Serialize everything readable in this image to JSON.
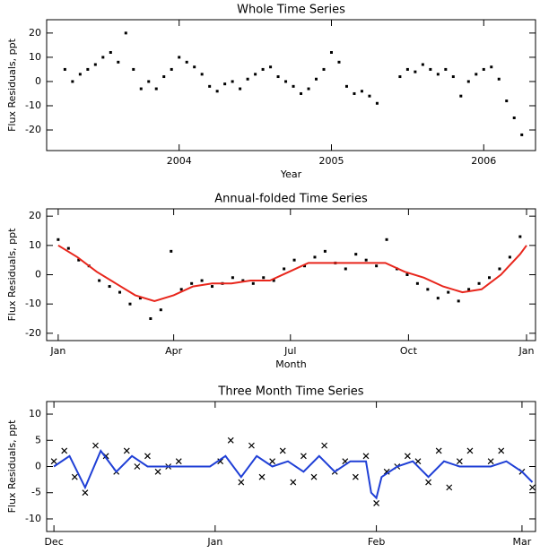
{
  "chart_data": [
    {
      "type": "scatter",
      "title": "Whole Time Series",
      "x_label": "Year",
      "y_label": "Flux Residuals, ppt",
      "xlim": [
        2003.13,
        2006.34
      ],
      "ylim": [
        -28.5,
        25.5
      ],
      "xticks": [
        2004,
        2005,
        2006
      ],
      "yticks": [
        -20,
        -10,
        0,
        10,
        20
      ],
      "series": [
        {
          "type": "scatter",
          "marker": "dot",
          "color": "#000000",
          "x": [
            2003.25,
            2003.3,
            2003.35,
            2003.4,
            2003.45,
            2003.5,
            2003.55,
            2003.6,
            2003.65,
            2003.7,
            2003.75,
            2003.8,
            2003.85,
            2003.9,
            2003.95,
            2004.0,
            2004.05,
            2004.1,
            2004.15,
            2004.2,
            2004.25,
            2004.3,
            2004.35,
            2004.4,
            2004.45,
            2004.5,
            2004.55,
            2004.6,
            2004.65,
            2004.7,
            2004.75,
            2004.8,
            2004.85,
            2004.9,
            2004.95,
            2005.0,
            2005.05,
            2005.1,
            2005.15,
            2005.2,
            2005.25,
            2005.3,
            2005.45,
            2005.5,
            2005.55,
            2005.6,
            2005.65,
            2005.7,
            2005.75,
            2005.8,
            2005.85,
            2005.9,
            2005.95,
            2006.0,
            2006.05,
            2006.1,
            2006.15,
            2006.2,
            2006.25
          ],
          "values": [
            5,
            0,
            3,
            5,
            7,
            10,
            12,
            8,
            20,
            5,
            -3,
            0,
            -3,
            2,
            5,
            10,
            8,
            6,
            3,
            -2,
            -4,
            -1,
            0,
            -3,
            1,
            3,
            5,
            6,
            2,
            0,
            -2,
            -5,
            -3,
            1,
            5,
            12,
            8,
            -2,
            -5,
            -4,
            -6,
            -9,
            2,
            5,
            4,
            7,
            5,
            3,
            5,
            2,
            -6,
            0,
            3,
            5,
            6,
            1,
            -8,
            -15,
            -22
          ]
        }
      ]
    },
    {
      "type": "scatter",
      "title": "Annual-folded Time Series",
      "x_label": "Month",
      "y_label": "Flux Residuals, ppt",
      "xlim": [
        -9,
        372
      ],
      "ylim": [
        -22.5,
        22.5
      ],
      "xticks": [
        {
          "value": 0,
          "label": "Jan"
        },
        {
          "value": 90,
          "label": "Apr"
        },
        {
          "value": 181,
          "label": "Jul"
        },
        {
          "value": 273,
          "label": "Oct"
        },
        {
          "value": 365,
          "label": "Jan"
        }
      ],
      "yticks": [
        -20,
        -10,
        0,
        10,
        20
      ],
      "series": [
        {
          "type": "scatter",
          "marker": "dot",
          "color": "#000000",
          "x": [
            0,
            8,
            16,
            24,
            32,
            40,
            48,
            56,
            64,
            72,
            80,
            88,
            96,
            104,
            112,
            120,
            128,
            136,
            144,
            152,
            160,
            168,
            176,
            184,
            192,
            200,
            208,
            216,
            224,
            232,
            240,
            248,
            256,
            264,
            272,
            280,
            288,
            296,
            304,
            312,
            320,
            328,
            336,
            344,
            352,
            360
          ],
          "values": [
            12,
            9,
            5,
            3,
            -2,
            -4,
            -6,
            -10,
            -8,
            -15,
            -12,
            8,
            -5,
            -3,
            -2,
            -4,
            -3,
            -1,
            -2,
            -3,
            -1,
            -2,
            2,
            5,
            3,
            6,
            8,
            4,
            2,
            7,
            5,
            3,
            12,
            2,
            0,
            -3,
            -5,
            -8,
            -6,
            -9,
            -5,
            -3,
            -1,
            2,
            6,
            13
          ]
        },
        {
          "type": "line",
          "color": "#e8261c",
          "x": [
            0,
            15,
            30,
            45,
            60,
            75,
            90,
            105,
            120,
            135,
            150,
            165,
            180,
            195,
            210,
            225,
            240,
            255,
            270,
            285,
            300,
            315,
            330,
            345,
            360,
            365
          ],
          "values": [
            10,
            6,
            1,
            -3,
            -7,
            -9,
            -7,
            -4,
            -3,
            -3,
            -2,
            -2,
            1,
            4,
            4,
            4,
            4,
            4,
            1,
            -1,
            -4,
            -6,
            -5,
            0,
            7,
            10
          ]
        }
      ]
    },
    {
      "type": "scatter",
      "title": "Three Month Time Series",
      "y_label": "Flux Residuals, ppt",
      "xlim": [
        -1.4,
        92.6
      ],
      "ylim": [
        -12.4,
        12.4
      ],
      "xticks": [
        {
          "value": 0,
          "label": "Dec"
        },
        {
          "value": 31,
          "label": "Jan"
        },
        {
          "value": 62,
          "label": "Feb"
        },
        {
          "value": 90,
          "label": "Mar"
        }
      ],
      "yticks": [
        -10,
        -5,
        0,
        5,
        10
      ],
      "series": [
        {
          "type": "scatter",
          "marker": "x",
          "color": "#000000",
          "x": [
            0,
            2,
            4,
            6,
            8,
            10,
            12,
            14,
            16,
            18,
            20,
            22,
            24,
            32,
            34,
            36,
            38,
            40,
            42,
            44,
            46,
            48,
            50,
            52,
            54,
            56,
            58,
            60,
            62,
            64,
            66,
            68,
            70,
            72,
            74,
            76,
            78,
            80,
            84,
            86,
            90,
            92
          ],
          "values": [
            1,
            3,
            -2,
            -5,
            4,
            2,
            -1,
            3,
            0,
            2,
            -1,
            0,
            1,
            1,
            5,
            -3,
            4,
            -2,
            1,
            3,
            -3,
            2,
            -2,
            4,
            -1,
            1,
            -2,
            2,
            -7,
            -1,
            0,
            2,
            1,
            -3,
            3,
            -4,
            1,
            3,
            1,
            3,
            -1,
            -4
          ]
        },
        {
          "type": "line",
          "color": "#1f3fd6",
          "x": [
            0,
            3,
            6,
            9,
            12,
            15,
            18,
            21,
            24,
            30,
            33,
            36,
            39,
            42,
            45,
            48,
            51,
            54,
            57,
            60,
            61,
            62,
            63,
            66,
            69,
            72,
            75,
            78,
            81,
            84,
            87,
            90,
            92
          ],
          "values": [
            0,
            2,
            -4,
            3,
            -1,
            2,
            0,
            0,
            0,
            0,
            2,
            -2,
            2,
            0,
            1,
            -1,
            2,
            -1,
            1,
            1,
            -5,
            -6,
            -2,
            0,
            1,
            -2,
            1,
            0,
            0,
            0,
            1,
            -1,
            -3
          ]
        }
      ]
    }
  ]
}
